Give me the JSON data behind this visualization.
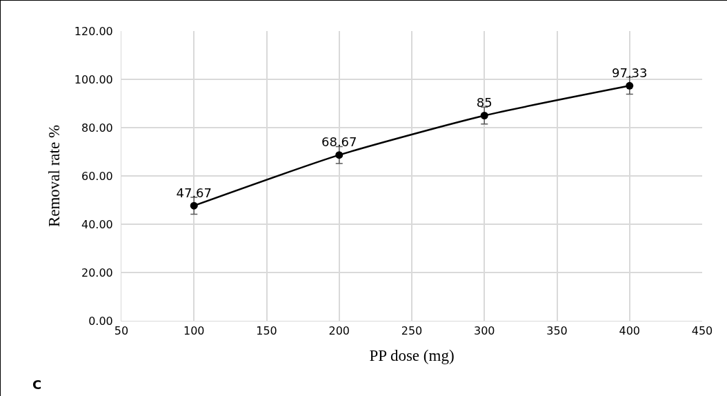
{
  "chart_data": {
    "type": "line",
    "xlabel": "PP dose (mg)",
    "ylabel": "Removal rate %",
    "x": [
      100,
      200,
      300,
      400
    ],
    "series": [
      {
        "color": "#000000",
        "values": [
          47.67,
          68.67,
          85,
          97.33
        ],
        "errors": [
          3.5,
          3.5,
          3.5,
          3.5
        ]
      }
    ],
    "data_labels": true,
    "marker": "circle",
    "line_style": "solid",
    "grid": true,
    "xlim": [
      50,
      450
    ],
    "xticks": [
      50,
      100,
      150,
      200,
      250,
      300,
      350,
      400,
      450
    ],
    "ylim": [
      0,
      120
    ],
    "yticks": [
      {
        "value": 0,
        "label": "0.00"
      },
      {
        "value": 20,
        "label": "20.00"
      },
      {
        "value": 40,
        "label": "40.00"
      },
      {
        "value": 60,
        "label": "60.00"
      },
      {
        "value": 80,
        "label": "80.00"
      },
      {
        "value": 100,
        "label": "100.00"
      },
      {
        "value": 120,
        "label": "120.00"
      }
    ],
    "annotations": [
      "C"
    ]
  }
}
